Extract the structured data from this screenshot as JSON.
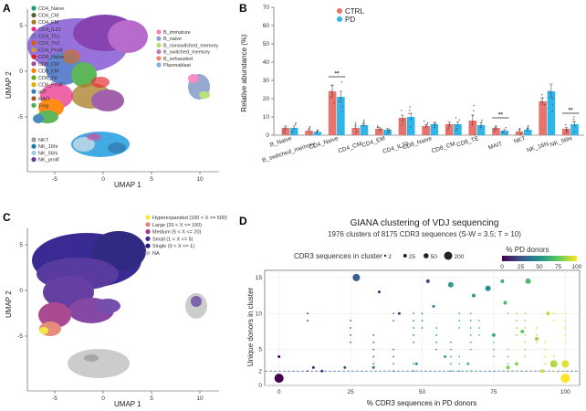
{
  "chart_data": [
    {
      "panel": "A",
      "type": "scatter",
      "xlabel": "UMAP 1",
      "ylabel": "UMAP 2",
      "x_ticks": [
        "-5",
        "0",
        "5",
        "10"
      ],
      "y_ticks": [
        "-5",
        "0",
        "5"
      ],
      "legend_left": [
        {
          "label": "CD4_Naive",
          "color": "#1b9e77"
        },
        {
          "label": "CD4_CM",
          "color": "#4d6a2a"
        },
        {
          "label": "CD4_EM",
          "color": "#a6761d"
        },
        {
          "label": "CD4_IL22",
          "color": "#e7298a"
        },
        {
          "label": "CD4_Th1",
          "color": "#7570b3"
        },
        {
          "label": "CD4_Th2",
          "color": "#d95f02"
        },
        {
          "label": "CD4_Prolif",
          "color": "#c9a227"
        },
        {
          "label": "CD8_Naive",
          "color": "#e41a1c"
        },
        {
          "label": "CD8_CM",
          "color": "#984ea3"
        },
        {
          "label": "CD8_EM",
          "color": "#ff7f00"
        },
        {
          "label": "CD8_TE",
          "color": "#66a61e"
        },
        {
          "label": "CD8_Prolif",
          "color": "#e6ab02"
        },
        {
          "label": "gdT",
          "color": "#377eb8"
        },
        {
          "label": "MAIT",
          "color": "#a65628"
        },
        {
          "label": "Treg",
          "color": "#4daf4a"
        }
      ],
      "legend_right": [
        {
          "label": "B_immature",
          "color": "#f781bf"
        },
        {
          "label": "B_naive",
          "color": "#8da0cb"
        },
        {
          "label": "B_nonswitched_memory",
          "color": "#b3de69"
        },
        {
          "label": "B_switched_memory",
          "color": "#bc80bd"
        },
        {
          "label": "B_exhausted",
          "color": "#fb8072"
        },
        {
          "label": "Plasmablast",
          "color": "#80b1d3"
        }
      ],
      "legend_bottom": [
        {
          "label": "NKT",
          "color": "#999999"
        },
        {
          "label": "NK_16hi",
          "color": "#1f78b4"
        },
        {
          "label": "NK_56hi",
          "color": "#a6cee3"
        },
        {
          "label": "NK_prolif",
          "color": "#6a3d9a"
        }
      ]
    },
    {
      "panel": "B",
      "type": "bar",
      "ylabel": "Relative abundance (%)",
      "ylim": [
        0,
        70
      ],
      "y_ticks": [
        0,
        10,
        20,
        30,
        40,
        50,
        60,
        70
      ],
      "categories": [
        "B_Naive",
        "B_switched_memory",
        "CD4_Naive",
        "CD4_CM",
        "CD4_EM",
        "CD4_IL22",
        "CD8_Naive",
        "CD8_CM",
        "CD8_TE",
        "MAIT",
        "NKT",
        "NK_16hi",
        "NK_56hi"
      ],
      "series": [
        {
          "name": "CTRL",
          "color": "#e8736c",
          "values": [
            4,
            2.5,
            24,
            4,
            3.5,
            9.5,
            5,
            6,
            8,
            4,
            2,
            18.5,
            3.5
          ],
          "errors": [
            1,
            0.8,
            3.5,
            1,
            0.8,
            1.5,
            1,
            1.2,
            3,
            1,
            0.6,
            2,
            0.8
          ]
        },
        {
          "name": "PD",
          "color": "#2fb5e8",
          "values": [
            4,
            1.8,
            21,
            5.5,
            3,
            10,
            6,
            6,
            5.5,
            2.5,
            3,
            24,
            6
          ],
          "errors": [
            1,
            0.6,
            3,
            1,
            0.7,
            2,
            1,
            1.3,
            1.5,
            0.6,
            0.8,
            4,
            1.5
          ]
        }
      ],
      "significance": [
        {
          "category": "CD4_Naive",
          "label": "**"
        },
        {
          "category": "MAIT",
          "label": "**"
        },
        {
          "category": "NK_56hi",
          "label": "**"
        }
      ]
    },
    {
      "panel": "C",
      "type": "scatter",
      "xlabel": "UMAP 1",
      "ylabel": "UMAP 2",
      "x_ticks": [
        "-5",
        "0",
        "5",
        "10"
      ],
      "y_ticks": [
        "-5",
        "0",
        "5"
      ],
      "legend": [
        {
          "label": "Hyperexpanded (100 < X <= 500)",
          "color": "#f5e83a"
        },
        {
          "label": "Large (20 < X <= 100)",
          "color": "#e6836f"
        },
        {
          "label": "Medium (5 < X <= 20)",
          "color": "#a23b8a"
        },
        {
          "label": "Small (1 < X <= 5)",
          "color": "#4b2a96"
        },
        {
          "label": "Single (0 < X <= 1)",
          "color": "#1f1978"
        },
        {
          "label": "NA",
          "color": "#c8c8c8"
        }
      ]
    },
    {
      "panel": "D",
      "type": "scatter",
      "title": "GIANA clustering of VDJ sequencing",
      "subtitle": "1976 clusters of 8175 CDR3 sequences (S-W = 3.5; T = 10)",
      "xlabel": "% CDR3 sequences in PD donors",
      "ylabel": "Unique donors in cluster",
      "xlim": [
        -5,
        105
      ],
      "ylim": [
        0,
        16
      ],
      "x_ticks": [
        0,
        25,
        50,
        75,
        100
      ],
      "y_ticks": [
        0,
        2,
        5,
        10,
        15
      ],
      "hline": 2,
      "size_legend_title": "CDR3 sequences in cluster",
      "size_legend": [
        "2",
        "25",
        "50",
        "200"
      ],
      "color_legend_title": "% PD donors",
      "color_legend_ticks": [
        "0",
        "25",
        "50",
        "75",
        "100"
      ],
      "points": [
        {
          "x": 27,
          "y": 15,
          "s": 4,
          "c": 30
        },
        {
          "x": 52,
          "y": 14.5,
          "s": 2,
          "c": 20
        },
        {
          "x": 60,
          "y": 14,
          "s": 3,
          "c": 55
        },
        {
          "x": 73,
          "y": 13.5,
          "s": 3,
          "c": 50
        },
        {
          "x": 78,
          "y": 14.5,
          "s": 2,
          "c": 62
        },
        {
          "x": 87,
          "y": 14.5,
          "s": 3,
          "c": 68
        },
        {
          "x": 35,
          "y": 13,
          "s": 1.5,
          "c": 10
        },
        {
          "x": 68,
          "y": 12.5,
          "s": 2,
          "c": 55
        },
        {
          "x": 79,
          "y": 11.5,
          "s": 2,
          "c": 66
        },
        {
          "x": 54,
          "y": 11,
          "s": 1.5,
          "c": 40
        },
        {
          "x": 94,
          "y": 10,
          "s": 2,
          "c": 90
        },
        {
          "x": 42,
          "y": 10,
          "s": 1.5,
          "c": 15
        },
        {
          "x": 85,
          "y": 7.5,
          "s": 2,
          "c": 75
        },
        {
          "x": 90,
          "y": 6.5,
          "s": 2,
          "c": 85
        },
        {
          "x": 75,
          "y": 7,
          "s": 2,
          "c": 62
        },
        {
          "x": 96,
          "y": 3,
          "s": 4,
          "c": 88
        },
        {
          "x": 100,
          "y": 3,
          "s": 4,
          "c": 95
        },
        {
          "x": 100,
          "y": 1,
          "s": 5,
          "c": 100
        },
        {
          "x": 0,
          "y": 1,
          "s": 5,
          "c": 0
        },
        {
          "x": 0,
          "y": 4,
          "s": 1.5,
          "c": 0
        },
        {
          "x": 12,
          "y": 2.5,
          "s": 1.5,
          "c": 10
        },
        {
          "x": 15,
          "y": 2,
          "s": 1.5,
          "c": 15
        },
        {
          "x": 23,
          "y": 2.5,
          "s": 1.5,
          "c": 25
        },
        {
          "x": 33,
          "y": 2.5,
          "s": 1.5,
          "c": 33
        },
        {
          "x": 48,
          "y": 3,
          "s": 1.5,
          "c": 48
        },
        {
          "x": 58,
          "y": 4,
          "s": 1.5,
          "c": 58
        },
        {
          "x": 66,
          "y": 3,
          "s": 1.5,
          "c": 66
        },
        {
          "x": 80,
          "y": 2.5,
          "s": 2,
          "c": 80
        },
        {
          "x": 83,
          "y": 3,
          "s": 2,
          "c": 83
        },
        {
          "x": 92,
          "y": 2,
          "s": 2,
          "c": 92
        }
      ]
    }
  ]
}
